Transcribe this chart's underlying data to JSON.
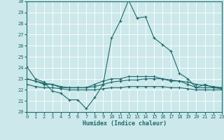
{
  "xlabel": "Humidex (Indice chaleur)",
  "bg_color": "#cce8ea",
  "grid_color": "#b0d8dc",
  "line_color": "#1a6b6b",
  "xlim": [
    0,
    23
  ],
  "ylim": [
    20,
    30
  ],
  "xticks": [
    0,
    1,
    2,
    3,
    4,
    5,
    6,
    7,
    8,
    9,
    10,
    11,
    12,
    13,
    14,
    15,
    16,
    17,
    18,
    19,
    20,
    21,
    22,
    23
  ],
  "yticks": [
    20,
    21,
    22,
    23,
    24,
    25,
    26,
    27,
    28,
    29,
    30
  ],
  "series": [
    [
      24.1,
      23.0,
      22.7,
      21.9,
      21.7,
      21.1,
      21.1,
      20.3,
      21.3,
      22.5,
      26.7,
      28.2,
      30.1,
      28.5,
      28.6,
      26.7,
      26.1,
      25.5,
      23.5,
      23.0,
      22.2,
      22.5,
      22.2,
      22.2
    ],
    [
      23.0,
      22.8,
      22.5,
      22.5,
      22.2,
      22.2,
      22.2,
      22.2,
      22.5,
      22.8,
      23.0,
      23.0,
      23.2,
      23.2,
      23.2,
      23.2,
      23.0,
      22.8,
      22.8,
      22.5,
      22.2,
      22.2,
      22.2,
      22.1
    ],
    [
      23.0,
      22.8,
      22.6,
      22.5,
      22.3,
      22.2,
      22.2,
      22.2,
      22.3,
      22.5,
      22.7,
      22.8,
      22.9,
      22.9,
      23.0,
      23.0,
      23.0,
      22.9,
      22.8,
      22.7,
      22.5,
      22.4,
      22.3,
      22.2
    ],
    [
      22.5,
      22.3,
      22.2,
      22.2,
      22.1,
      22.0,
      22.0,
      22.0,
      22.0,
      22.1,
      22.2,
      22.2,
      22.3,
      22.3,
      22.3,
      22.3,
      22.3,
      22.2,
      22.2,
      22.1,
      22.0,
      22.0,
      22.0,
      22.0
    ]
  ],
  "has_markers": [
    true,
    true,
    true,
    true
  ]
}
